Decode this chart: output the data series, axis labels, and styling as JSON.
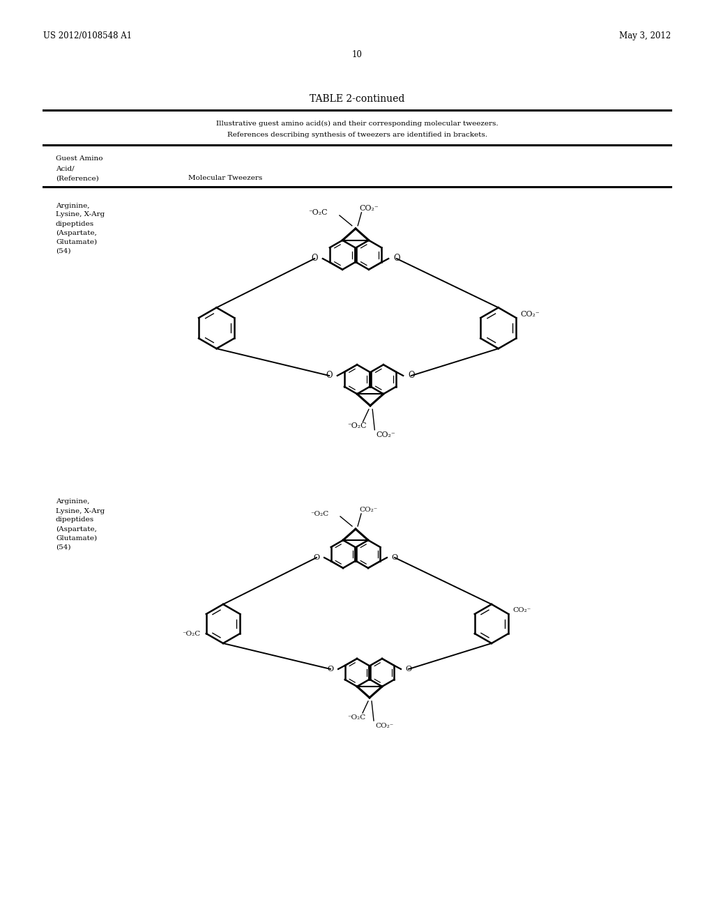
{
  "page_header_left": "US 2012/0108548 A1",
  "page_header_right": "May 3, 2012",
  "page_number": "10",
  "table_title": "TABLE 2-continued",
  "table_caption_line1": "Illustrative guest amino acid(s) and their corresponding molecular tweezers.",
  "table_caption_line2": "References describing synthesis of tweezers are identified in brackets.",
  "col1_header_line1": "Guest Amino",
  "col1_header_line2": "Acid/",
  "col1_header_line3": "(Reference)",
  "col2_header": "Molecular Tweezers",
  "row1_label_line1": "Arginine,",
  "row1_label_line2": "Lysine, X-Arg",
  "row1_label_line3": "dipeptides",
  "row1_label_line4": "(Aspartate,",
  "row1_label_line5": "Glutamate)",
  "row1_label_line6": "(54)",
  "row2_label_line1": "Arginine,",
  "row2_label_line2": "Lysine, X-Arg",
  "row2_label_line3": "dipeptides",
  "row2_label_line4": "(Aspartate,",
  "row2_label_line5": "Glutamate)",
  "row2_label_line6": "(54)",
  "bg_color": "#ffffff",
  "text_color": "#000000",
  "line_color": "#000000",
  "header_fontsize": 8.5,
  "body_fontsize": 7.5,
  "title_fontsize": 10
}
